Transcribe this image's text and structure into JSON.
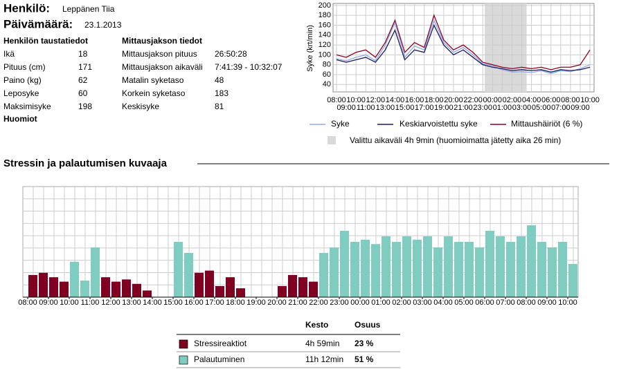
{
  "header": {
    "person_label": "Henkilö:",
    "person": "Leppänen Tiia",
    "date_label": "Päivämäärä:",
    "date": "23.1.2013"
  },
  "background": {
    "title": "Henkilön taustatiedot",
    "rows": [
      [
        "Ikä",
        "18"
      ],
      [
        "Pituus (cm)",
        "171"
      ],
      [
        "Paino (kg)",
        "62"
      ],
      [
        "Leposyke",
        "60"
      ],
      [
        "Maksimisyke",
        "198"
      ]
    ]
  },
  "measurement": {
    "title": "Mittausjakson tiedot",
    "rows": [
      [
        "Mittausjakson pituus",
        "26:50:28"
      ],
      [
        "Mittausjakson aikaväli",
        "7:41:39 - 10:32:07"
      ],
      [
        "Matalin syketaso",
        "48"
      ],
      [
        "Korkein syketaso",
        "183"
      ],
      [
        "Keskisyke",
        "81"
      ]
    ]
  },
  "notes": {
    "title": "Huomiot"
  },
  "hr_chart": {
    "type": "line",
    "y_label": "Syke (krt/min)",
    "categories": [
      "08:00",
      "09:00",
      "10:00",
      "11:00",
      "12:00",
      "13:00",
      "14:00",
      "15:00",
      "16:00",
      "17:00",
      "18:00",
      "19:00",
      "20:00",
      "21:00",
      "22:00",
      "23:00",
      "00:00",
      "01:00",
      "02:00",
      "03:00",
      "04:00",
      "05:00",
      "06:00",
      "07:00",
      "08:00",
      "09:00",
      "10:00"
    ],
    "ylim": [
      25,
      204
    ],
    "yticks": [
      40,
      60,
      80,
      100,
      120,
      140,
      160,
      180,
      200
    ],
    "grid": true,
    "highlight_range": [
      15.2,
      19.5
    ],
    "series": [
      {
        "name": "Mittaushäiriöt (6 %)",
        "color": "#8b0020",
        "values": [
          100,
          95,
          105,
          110,
          95,
          125,
          170,
          105,
          125,
          115,
          180,
          130,
          110,
          120,
          105,
          85,
          80,
          75,
          72,
          75,
          72,
          75,
          70,
          75,
          75,
          80,
          110
        ]
      },
      {
        "name": "Syke",
        "color": "#8fa8e8",
        "values": [
          92,
          88,
          95,
          100,
          88,
          120,
          165,
          95,
          118,
          110,
          170,
          125,
          105,
          115,
          100,
          82,
          78,
          70,
          65,
          66,
          64,
          68,
          62,
          68,
          66,
          72,
          80
        ]
      },
      {
        "name": "Keskiarvoistettu syke",
        "color": "#1a1a5e",
        "values": [
          90,
          85,
          90,
          95,
          85,
          110,
          150,
          90,
          110,
          105,
          160,
          120,
          100,
          110,
          95,
          80,
          75,
          72,
          68,
          70,
          68,
          70,
          65,
          70,
          68,
          70,
          75
        ]
      }
    ],
    "highlight_legend": "Valittu aikaväli 4h 9min (huomioimatta jätetty aika 26 min)"
  },
  "stress_chart": {
    "type": "bar",
    "title": "Stressin ja palautumisen kuvaaja",
    "xticks": [
      "08:00",
      "09:00",
      "10:00",
      "11:00",
      "12:00",
      "13:00",
      "14:00",
      "15:00",
      "16:00",
      "17:00",
      "18:00",
      "19:00",
      "20:00",
      "21:00",
      "22:00",
      "23:00",
      "00:00",
      "01:00",
      "02:00",
      "03:00",
      "04:00",
      "05:00",
      "06:00",
      "07:00",
      "08:00",
      "09:00",
      "10:00"
    ],
    "ylim": [
      0,
      100
    ],
    "series": [
      {
        "color": "#7f0020",
        "values": [
          20,
          22,
          18,
          14,
          null,
          null,
          null,
          18,
          14,
          16,
          12,
          6,
          null,
          null,
          null,
          null,
          22,
          24,
          10,
          18,
          8,
          null,
          null,
          null,
          10,
          20,
          18,
          14,
          null,
          null,
          null,
          null,
          null,
          null,
          null,
          null,
          null,
          null,
          null,
          null,
          null,
          null,
          null,
          null,
          null,
          null,
          null,
          null,
          null,
          null,
          null,
          null,
          null
        ]
      },
      {
        "color": "#7ecdc0",
        "values": [
          null,
          null,
          null,
          null,
          32,
          15,
          45,
          null,
          null,
          null,
          null,
          null,
          null,
          null,
          50,
          40,
          null,
          null,
          null,
          null,
          null,
          null,
          null,
          null,
          null,
          null,
          null,
          null,
          40,
          45,
          60,
          50,
          52,
          48,
          55,
          50,
          55,
          52,
          55,
          45,
          55,
          50,
          50,
          45,
          60,
          55,
          50,
          55,
          65,
          50,
          45,
          50,
          30
        ]
      }
    ]
  },
  "summary": {
    "headers": [
      "Kesto",
      "Osuus"
    ],
    "rows": [
      [
        "Stressireaktiot",
        "4h 59min",
        "23 %"
      ],
      [
        "Palautuminen",
        "11h 12min",
        "51 %"
      ]
    ]
  }
}
